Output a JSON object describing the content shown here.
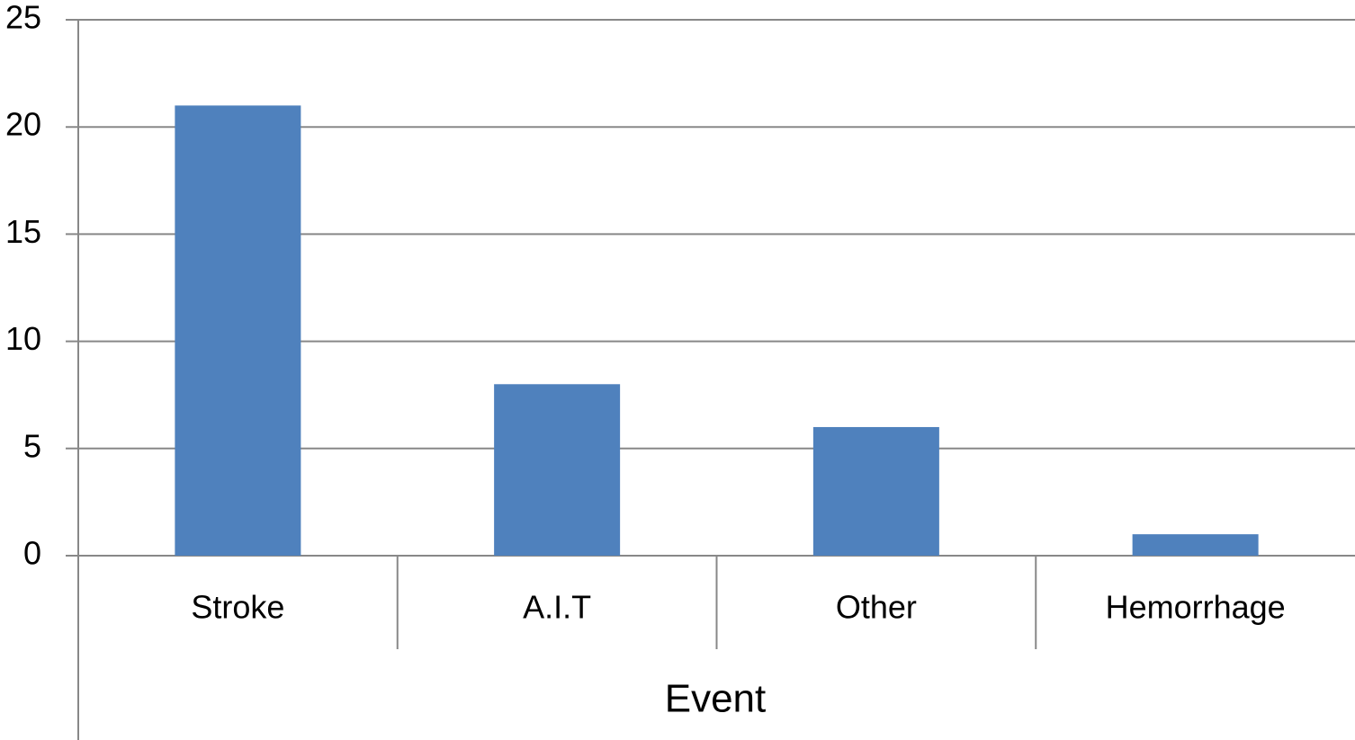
{
  "chart_data": {
    "type": "bar",
    "x_label": "Event",
    "categories": [
      "Stroke",
      "A.I.T",
      "Other",
      "Hemorrhage"
    ],
    "values": [
      21,
      8,
      6,
      1
    ],
    "color": "#4f81bd",
    "ylim": [
      0,
      25
    ],
    "yticks": [
      0,
      5,
      10,
      15,
      20,
      25
    ],
    "grid": true
  }
}
